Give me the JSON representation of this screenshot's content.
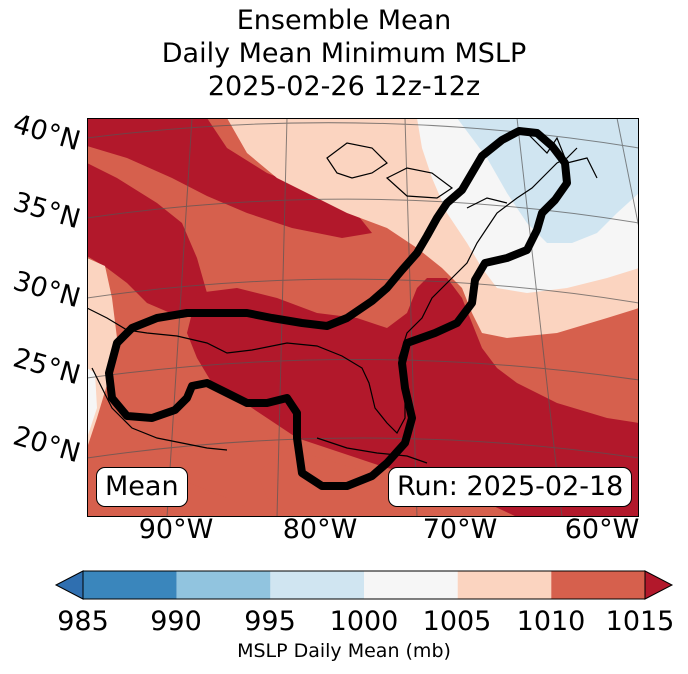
{
  "title": {
    "line1": "Ensemble Mean",
    "line2": "Daily Mean Minimum MSLP",
    "line3": "2025-02-26 12z-12z"
  },
  "map": {
    "lat_labels": [
      "40°N",
      "35°N",
      "30°N",
      "25°N",
      "20°N"
    ],
    "lon_labels": [
      "90°W",
      "80°W",
      "70°W",
      "60°W"
    ],
    "mean_box": "Mean",
    "run_box": "Run: 2025-02-18"
  },
  "colors": {
    "c985": "#3a86bc",
    "c990": "#91c4df",
    "c995": "#d0e5f1",
    "c1000": "#f6f6f6",
    "c1005": "#fbd4c0",
    "c1010": "#d6604d",
    "c1015": "#b2182b",
    "contour": "#000000",
    "grid": "#555555"
  },
  "colorbar": {
    "ticks": [
      "985",
      "990",
      "995",
      "1000",
      "1005",
      "1010",
      "1015"
    ],
    "label": "MSLP Daily Mean (mb)"
  }
}
